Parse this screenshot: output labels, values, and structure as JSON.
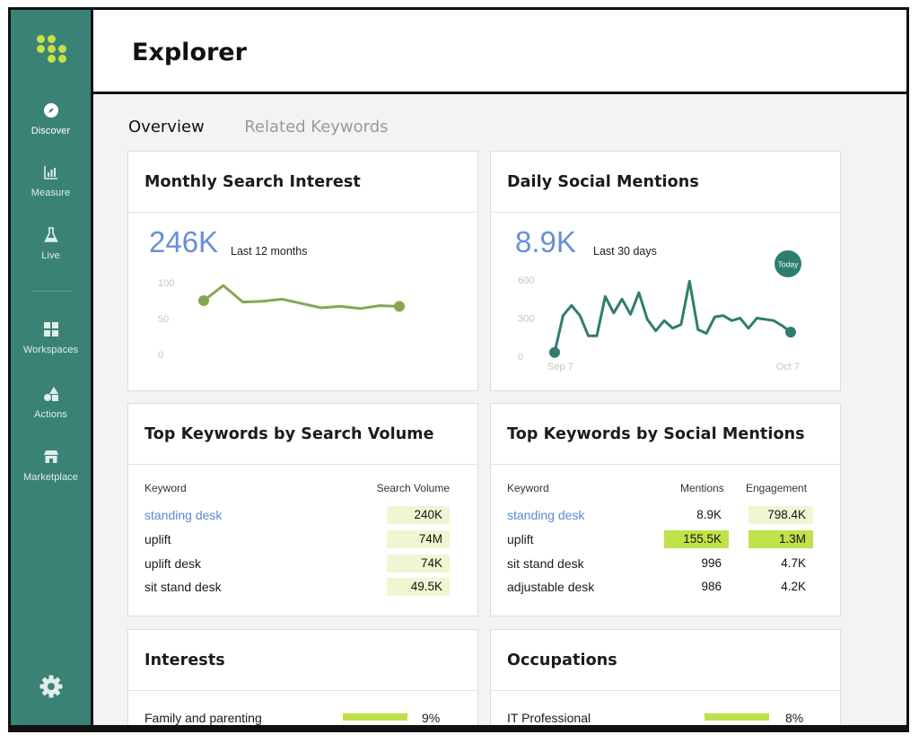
{
  "app": {
    "title": "Explorer"
  },
  "sidebar": {
    "items": [
      {
        "id": "discover",
        "label": "Discover",
        "icon": "compass-icon",
        "active": true
      },
      {
        "id": "measure",
        "label": "Measure",
        "icon": "bar-chart-icon"
      },
      {
        "id": "live",
        "label": "Live",
        "icon": "flask-icon"
      },
      {
        "id": "workspaces",
        "label": "Workspaces",
        "icon": "grid-icon"
      },
      {
        "id": "actions",
        "label": "Actions",
        "icon": "shapes-icon"
      },
      {
        "id": "marketplace",
        "label": "Marketplace",
        "icon": "store-icon"
      }
    ],
    "settings_icon": "gear-icon",
    "accent": "#3b8276",
    "logo_color": "#c7e04a"
  },
  "tabs": [
    {
      "label": "Overview",
      "active": true
    },
    {
      "label": "Related Keywords",
      "active": false
    }
  ],
  "monthly_search": {
    "title": "Monthly Search Interest",
    "value": "246K",
    "period": "Last 12 months",
    "chart_data": {
      "type": "line",
      "y_ticks": [
        "100",
        "50",
        "0"
      ],
      "ylim": [
        0,
        100
      ],
      "values": [
        75,
        96,
        73,
        74,
        77,
        71,
        65,
        67,
        64,
        68,
        67
      ],
      "color": "#86a751"
    }
  },
  "daily_social": {
    "title": "Daily Social Mentions",
    "value": "8.9K",
    "period": "Last 30 days",
    "today_badge": "Today",
    "chart_data": {
      "type": "line",
      "y_ticks": [
        "600",
        "300",
        "0"
      ],
      "ylim": [
        0,
        600
      ],
      "x_labels": [
        "Sep 7",
        "Oct 7"
      ],
      "values": [
        30,
        320,
        400,
        320,
        160,
        160,
        470,
        340,
        450,
        330,
        500,
        290,
        200,
        280,
        220,
        250,
        590,
        210,
        180,
        310,
        320,
        280,
        300,
        220,
        300,
        290,
        280,
        240,
        190
      ],
      "color": "#2f7d6f"
    }
  },
  "top_search": {
    "title": "Top Keywords by Search Volume",
    "headers": {
      "keyword": "Keyword",
      "volume": "Search Volume"
    },
    "rows": [
      {
        "keyword": "standing desk",
        "volume": "240K",
        "link": true
      },
      {
        "keyword": "uplift",
        "volume": "74M"
      },
      {
        "keyword": "uplift desk",
        "volume": "74K"
      },
      {
        "keyword": "sit stand desk",
        "volume": "49.5K"
      }
    ]
  },
  "top_social": {
    "title": "Top Keywords by Social Mentions",
    "headers": {
      "keyword": "Keyword",
      "mentions": "Mentions",
      "engagement": "Engagement"
    },
    "rows": [
      {
        "keyword": "standing desk",
        "mentions": "8.9K",
        "engagement": "798.4K",
        "link": true
      },
      {
        "keyword": "uplift",
        "mentions": "155.5K",
        "engagement": "1.3M"
      },
      {
        "keyword": "sit stand desk",
        "mentions": "996",
        "engagement": "4.7K"
      },
      {
        "keyword": "adjustable desk",
        "mentions": "986",
        "engagement": "4.2K"
      }
    ]
  },
  "interests": {
    "title": "Interests",
    "rows": [
      {
        "label": "Family and parenting",
        "percent": "9%",
        "level": 0.09
      }
    ]
  },
  "occupations": {
    "title": "Occupations",
    "rows": [
      {
        "label": "IT Professional",
        "percent": "8%",
        "level": 0.08
      }
    ]
  }
}
